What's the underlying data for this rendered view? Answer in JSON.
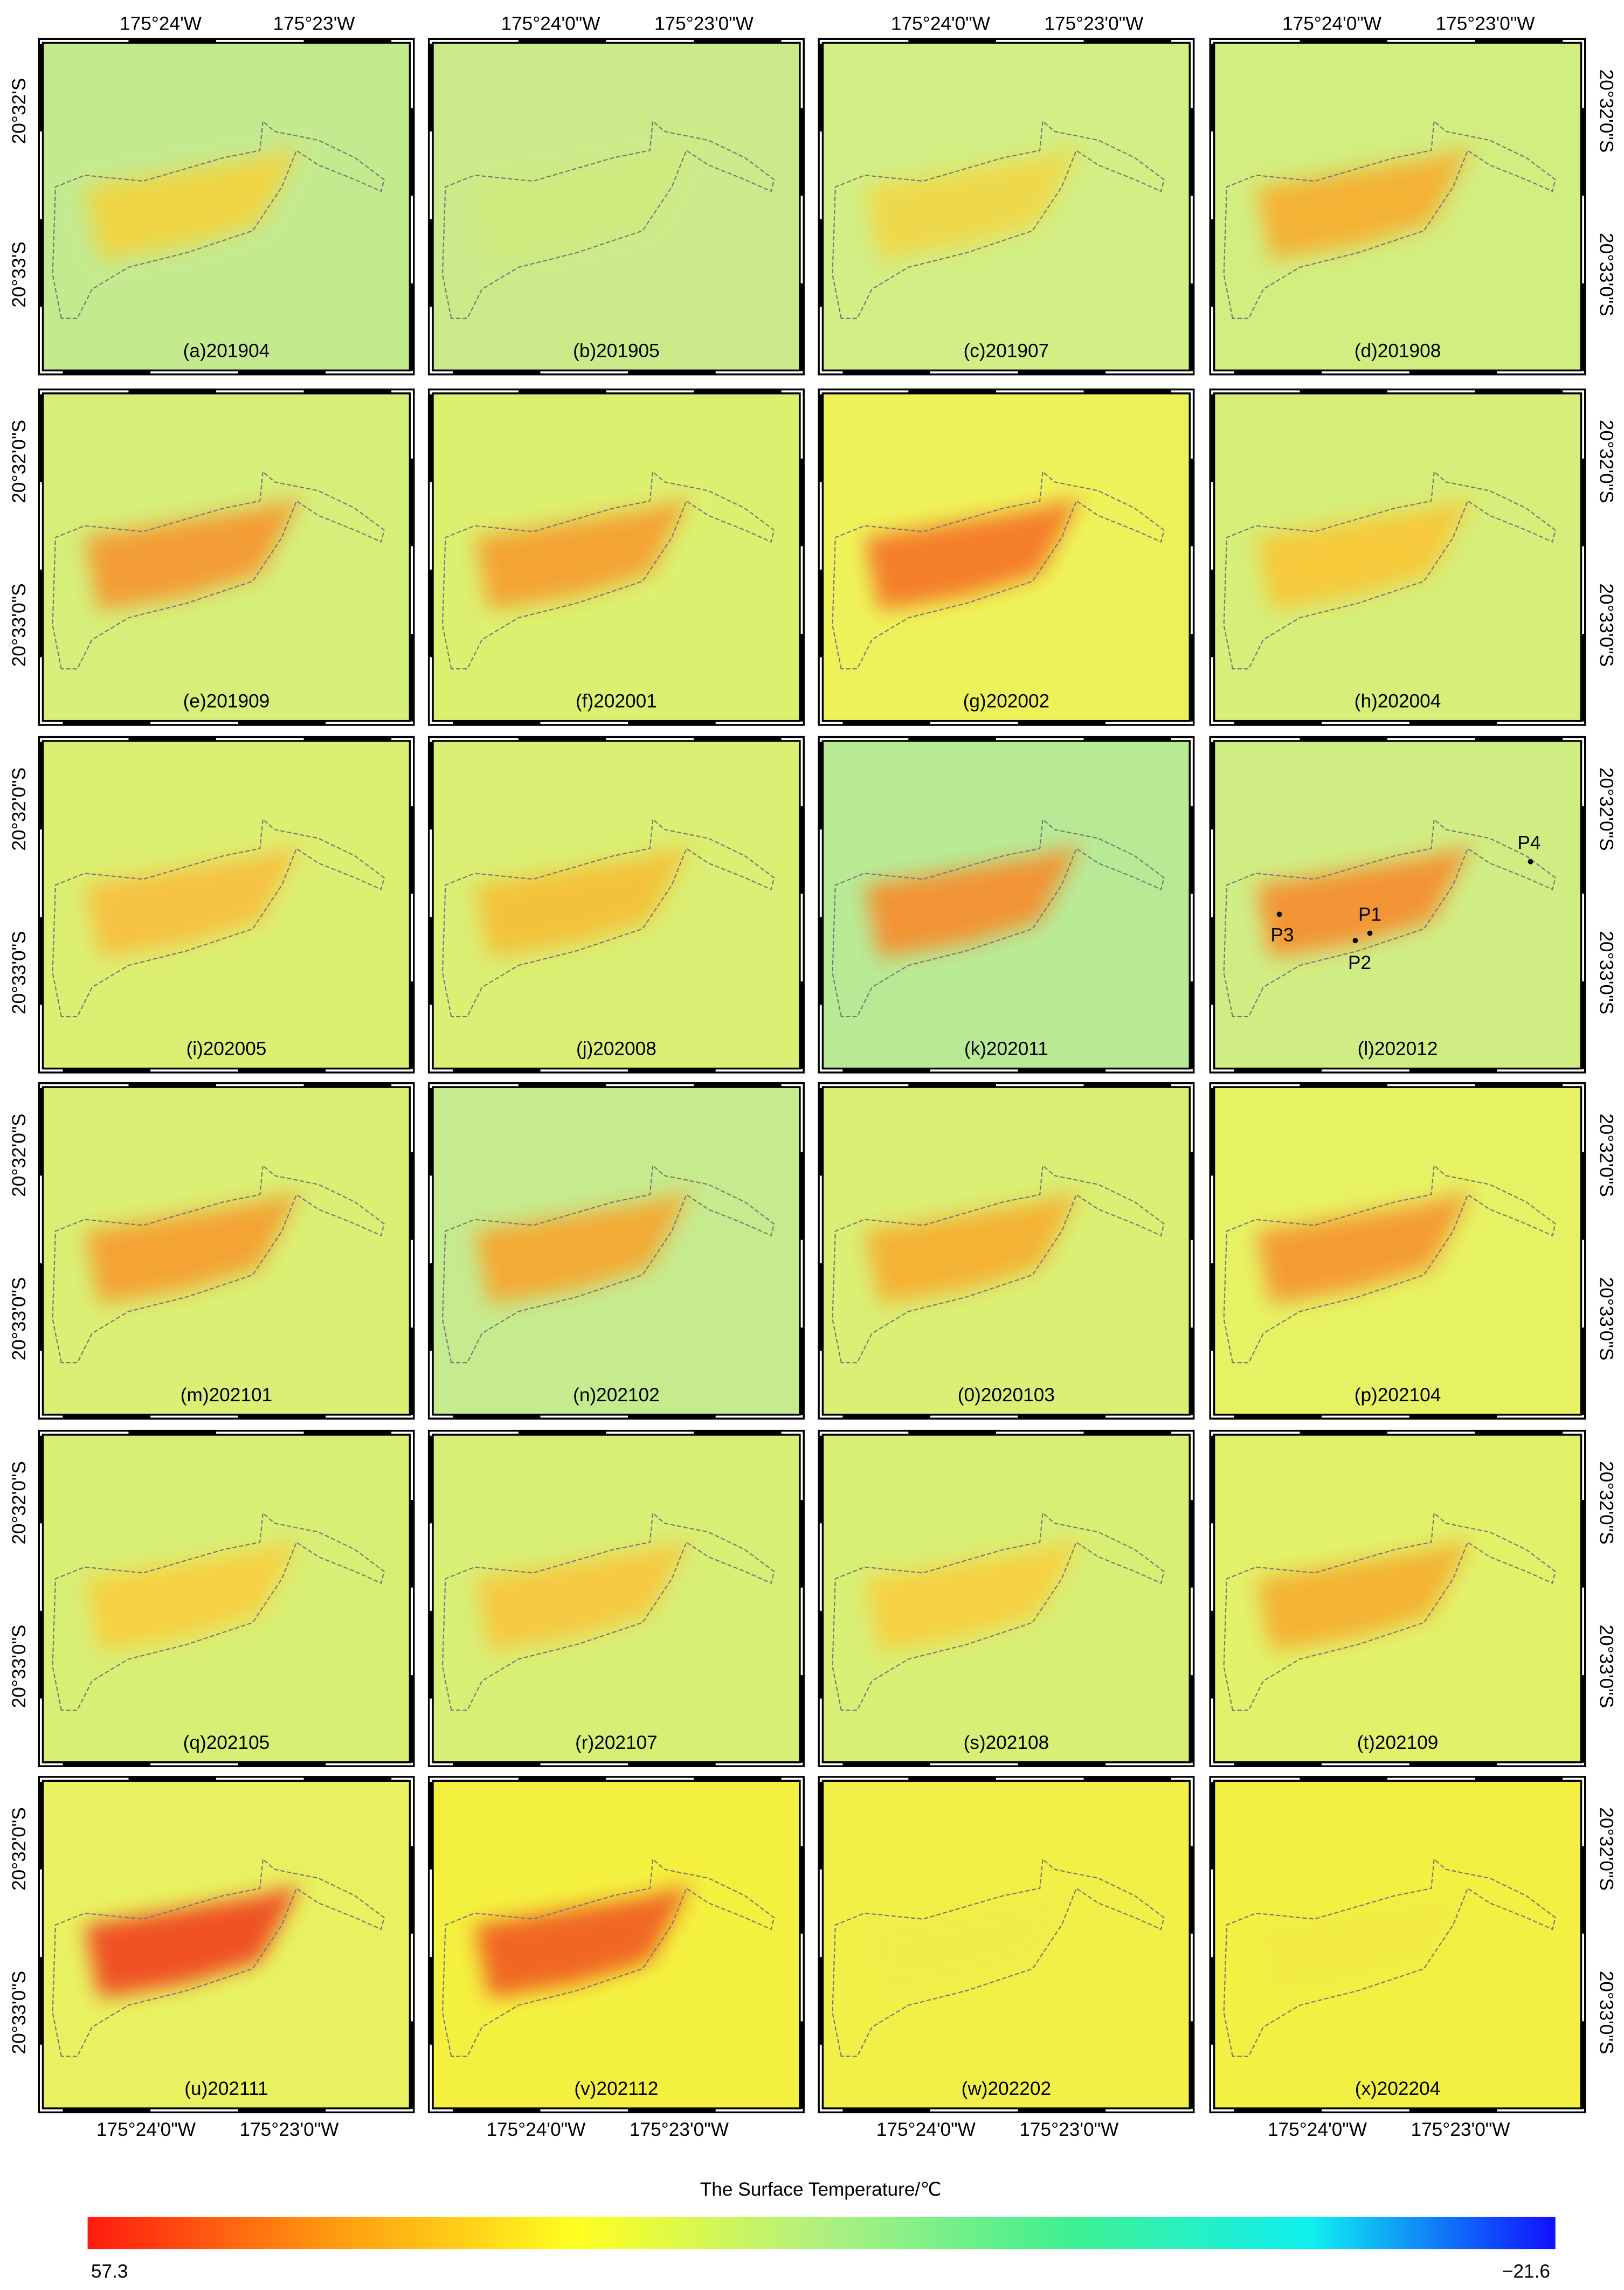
{
  "panels": [
    {
      "label": "(a)201904",
      "background": "#c4ea90",
      "heat": "#f2d440"
    },
    {
      "label": "(b)201905",
      "background": "#cbeb8a",
      "heat": "#d2ea7c"
    },
    {
      "label": "(c)201907",
      "background": "#d2ee84",
      "heat": "#f0d848"
    },
    {
      "label": "(d)201908",
      "background": "#d2ee80",
      "heat": "#f5b030"
    },
    {
      "label": "(e)201909",
      "background": "#d6ee7a",
      "heat": "#f59830"
    },
    {
      "label": "(f)202001",
      "background": "#dcf070",
      "heat": "#f5a030"
    },
    {
      "label": "(g)202002",
      "background": "#eef25a",
      "heat": "#f57828"
    },
    {
      "label": "(h)202004",
      "background": "#d6ee7a",
      "heat": "#f8c838"
    },
    {
      "label": "(i)202005",
      "background": "#dcef72",
      "heat": "#f8c040"
    },
    {
      "label": "(j)202008",
      "background": "#daef74",
      "heat": "#f5c038"
    },
    {
      "label": "(k)202011",
      "background": "#b8ea96",
      "heat": "#f59030"
    },
    {
      "label": "(l)202012",
      "background": "#d0ed84",
      "heat": "#f59030"
    },
    {
      "label": "(m)202101",
      "background": "#daef74",
      "heat": "#f5a030"
    },
    {
      "label": "(n)202102",
      "background": "#c6ea8e",
      "heat": "#f5a830"
    },
    {
      "label": "(0)2020103",
      "background": "#daef74",
      "heat": "#f5b030"
    },
    {
      "label": "(p)202104",
      "background": "#e6f264",
      "heat": "#f59830"
    },
    {
      "label": "(q)202105",
      "background": "#d8ef76",
      "heat": "#f8d040"
    },
    {
      "label": "(r)202107",
      "background": "#d8ef76",
      "heat": "#f8c840"
    },
    {
      "label": "(s)202108",
      "background": "#d8ef76",
      "heat": "#f8d040"
    },
    {
      "label": "(t)202109",
      "background": "#e2f16a",
      "heat": "#f5b030"
    },
    {
      "label": "(u)202111",
      "background": "#e8f260",
      "heat": "#f04a20"
    },
    {
      "label": "(v)202112",
      "background": "#f4f040",
      "heat": "#f06020"
    },
    {
      "label": "(w)202202",
      "background": "#f0f048",
      "heat": "#f2ec48"
    },
    {
      "label": "(x)202204",
      "background": "#f2f042",
      "heat": "#f2ec44"
    }
  ],
  "axis_labels": {
    "top": [
      [
        "175°24'W",
        "175°23'W"
      ],
      [
        "175°24'0\"W",
        "175°23'0\"W"
      ],
      [
        "175°24'0\"W",
        "175°23'0\"W"
      ],
      [
        "175°24'0\"W",
        "175°23'0\"W"
      ]
    ],
    "bottom": [
      [
        "175°24'0\"W",
        "175°23'0\"W"
      ],
      [
        "175°24'0\"W",
        "175°23'0\"W"
      ],
      [
        "175°24'0\"W",
        "175°23'0\"W"
      ],
      [
        "175°24'0\"W",
        "175°23'0\"W"
      ]
    ],
    "left": [
      [
        "20°32'S",
        "20°33'S"
      ],
      [
        "20°32'0\"S",
        "20°33'0\"S"
      ],
      [
        "20°32'0\"S",
        "20°33'0\"S"
      ],
      [
        "20°32'0\"S",
        "20°33'0\"S"
      ],
      [
        "20°32'0\"S",
        "20°33'0\"S"
      ],
      [
        "20°32'0\"S",
        "20°33'0\"S"
      ]
    ],
    "right": [
      [
        "20°32'0\"S",
        "20°33'0\"S"
      ],
      [
        "20°32'0\"S",
        "20°33'0\"S"
      ],
      [
        "20°32'0\"S",
        "20°33'0\"S"
      ],
      [
        "20°32'0\"S",
        "20°33'0\"S"
      ],
      [
        "20°32'0\"S",
        "20°33'0\"S"
      ],
      [
        "20°32'0\"S",
        "20°33'0\"S"
      ]
    ]
  },
  "points": [
    {
      "label": "P1"
    },
    {
      "label": "P2"
    },
    {
      "label": "P3"
    },
    {
      "label": "P4"
    }
  ],
  "colorbar": {
    "title": "The Surface Temperature/℃",
    "min": "57.3",
    "max": "−21.6",
    "colors": [
      "#ff1a10",
      "#ff9a10",
      "#ffff20",
      "#b0f080",
      "#40f090",
      "#10f0f0",
      "#1010ff"
    ]
  }
}
